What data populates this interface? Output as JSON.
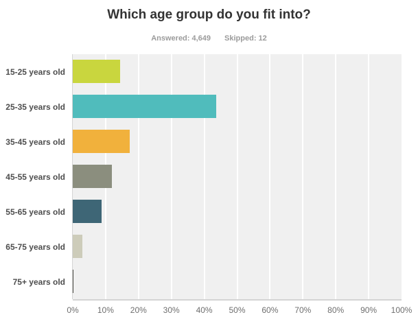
{
  "header": {
    "title": "Which age group do you fit into?",
    "answered": "Answered: 4,649",
    "skipped": "Skipped: 12"
  },
  "chart_data": {
    "type": "bar",
    "orientation": "horizontal",
    "title": "Which age group do you fit into?",
    "subtitle": "Answered: 4,649  Skipped: 12",
    "categories": [
      "15-25 years old",
      "25-35 years old",
      "35-45 years old",
      "45-55 years old",
      "55-65 years old",
      "65-75 years old",
      "75+ years old"
    ],
    "values": [
      14.4,
      43.7,
      17.3,
      12.0,
      8.8,
      2.9,
      0.3
    ],
    "value_unit": "%",
    "bar_colors": [
      "#c9d63e",
      "#50bcbc",
      "#f1b13c",
      "#8b8e7e",
      "#3e6676",
      "#cdccba",
      "#4b4b44"
    ],
    "x_ticks": [
      "0%",
      "10%",
      "20%",
      "30%",
      "40%",
      "50%",
      "60%",
      "70%",
      "80%",
      "90%",
      "100%"
    ],
    "xlim": [
      0,
      100
    ],
    "grid": true,
    "legend": false,
    "colors": {
      "plot_bg": "#f0f0f0",
      "grid_color": "#ffffff",
      "axis_color": "#d4d4d4",
      "title_color": "#333333",
      "subtitle_color": "#9b9b9b",
      "label_color": "#4d4d4d",
      "tick_color": "#6e6e6e"
    }
  }
}
